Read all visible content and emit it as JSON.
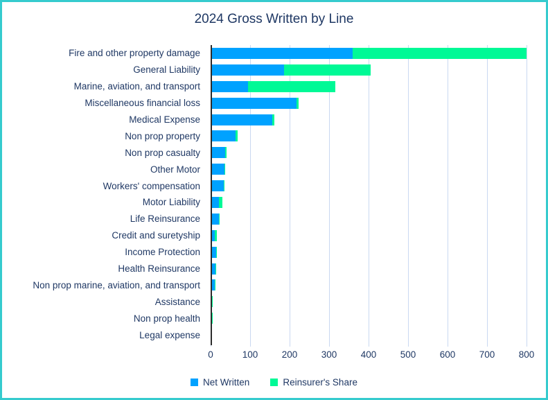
{
  "chart_data": {
    "type": "bar",
    "orientation": "horizontal",
    "stacked": true,
    "title": "2024 Gross Written by Line",
    "categories": [
      "Fire and other property damage",
      "General Liability",
      "Marine, aviation, and transport",
      "Miscellaneous financial loss",
      "Medical Expense",
      "Non prop property",
      "Non prop casualty",
      "Other Motor",
      "Workers' compensation",
      "Motor Liability",
      "Life Reinsurance",
      "Credit and suretyship",
      "Income Protection",
      "Health Reinsurance",
      "Non prop marine, aviation, and transport",
      "Assistance",
      "Non prop health",
      "Legal expense"
    ],
    "series": [
      {
        "name": "Net Written",
        "color": "#00A2FF",
        "values": [
          360,
          186,
          95,
          217,
          157,
          64,
          36,
          35,
          33,
          21,
          21,
          11,
          14,
          12,
          10,
          4,
          3,
          1
        ]
      },
      {
        "name": "Reinsurer's Share",
        "color": "#00F996",
        "values": [
          440,
          220,
          220,
          6,
          5,
          4,
          4,
          1,
          2,
          9,
          1,
          4,
          1,
          1,
          1,
          2,
          0.5,
          2
        ]
      }
    ],
    "x_ticks": [
      0,
      100,
      200,
      300,
      400,
      500,
      600,
      700,
      800
    ],
    "xlim": [
      0,
      800
    ],
    "grid": true,
    "legend_position": "bottom",
    "colors": {
      "title_text": "#1F3864",
      "label_text": "#1F3864",
      "gridline": "#C9D8F1",
      "axis_line": "#2b2b2b",
      "frame_border": "#35CBCE",
      "background": "#FFFFFF"
    }
  }
}
